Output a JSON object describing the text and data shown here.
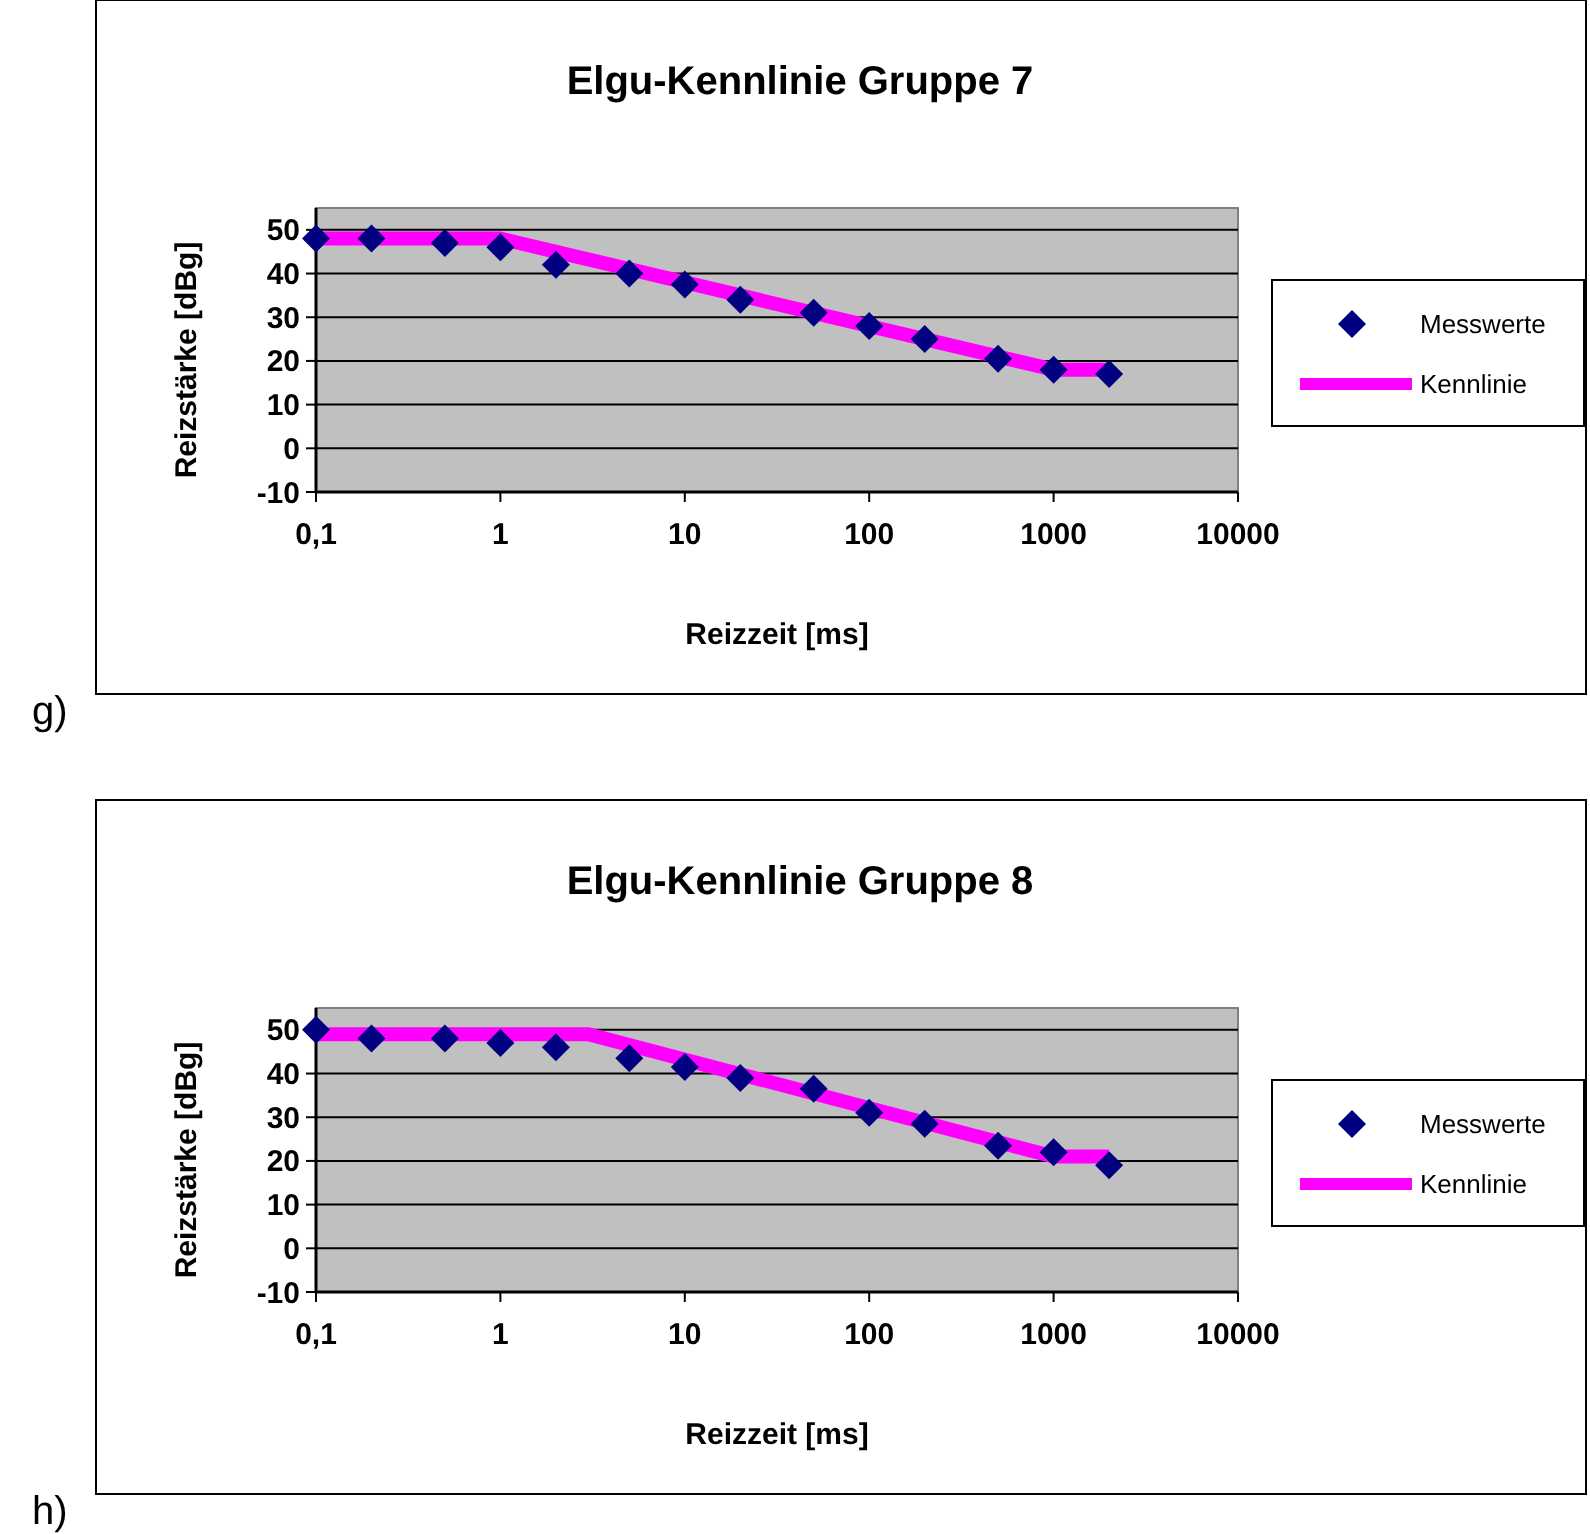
{
  "chart_data": [
    {
      "type": "scatter",
      "title": "Elgu-Kennlinie Gruppe 7",
      "xlabel": "Reizzeit [ms]",
      "ylabel": "Reizstärke [dBg]",
      "log": "x",
      "xlim": [
        0.1,
        10000
      ],
      "xticks": [
        {
          "value": 0.1,
          "label": "0,1"
        },
        1,
        10,
        100,
        1000,
        10000
      ],
      "ylim": [
        -10,
        55
      ],
      "yticks": [
        -10,
        0,
        10,
        20,
        30,
        40,
        50
      ],
      "grid": "y",
      "legend": "right",
      "annotations": [
        "g)"
      ],
      "series": [
        {
          "name": "Messwerte",
          "marker": "diamond",
          "color": "#000080",
          "x": [
            0.1,
            0.2,
            0.5,
            1,
            2,
            5,
            10,
            20,
            50,
            100,
            200,
            500,
            1000,
            2000
          ],
          "values": [
            48,
            48,
            47,
            46,
            42,
            40,
            37.5,
            34,
            31,
            28,
            25,
            20.5,
            18,
            17
          ]
        },
        {
          "name": "Kennlinie",
          "type": "line",
          "marker": "none",
          "color": "#ff00ff",
          "x": [
            0.1,
            1,
            1000,
            2000
          ],
          "values": [
            48,
            48,
            18,
            18
          ]
        }
      ]
    },
    {
      "type": "scatter",
      "title": "Elgu-Kennlinie Gruppe 8",
      "xlabel": "Reizzeit [ms]",
      "ylabel": "Reizstärke [dBg]",
      "log": "x",
      "xlim": [
        0.1,
        10000
      ],
      "xticks": [
        {
          "value": 0.1,
          "label": "0,1"
        },
        1,
        10,
        100,
        1000,
        10000
      ],
      "ylim": [
        -10,
        55
      ],
      "yticks": [
        -10,
        0,
        10,
        20,
        30,
        40,
        50
      ],
      "grid": "y",
      "legend": "right",
      "annotations": [
        "h)"
      ],
      "series": [
        {
          "name": "Messwerte",
          "marker": "diamond",
          "color": "#000080",
          "x": [
            0.1,
            0.2,
            0.5,
            1,
            2,
            5,
            10,
            20,
            50,
            100,
            200,
            500,
            1000,
            2000
          ],
          "values": [
            50,
            48,
            48,
            47,
            46,
            43.5,
            41.5,
            39,
            36.5,
            31,
            28.5,
            23.5,
            22,
            19
          ]
        },
        {
          "name": "Kennlinie",
          "type": "line",
          "marker": "none",
          "color": "#ff00ff",
          "x": [
            0.1,
            3,
            1000,
            2000
          ],
          "values": [
            49,
            49,
            21,
            21
          ]
        }
      ]
    }
  ]
}
